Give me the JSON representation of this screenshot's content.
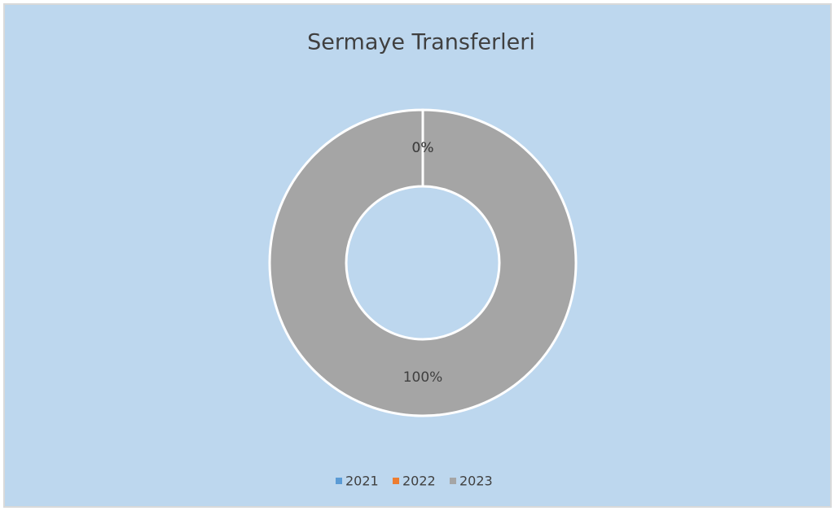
{
  "chart_data": {
    "type": "donut",
    "title": "Sermaye Transferleri",
    "categories": [
      "2021",
      "2022",
      "2023"
    ],
    "values": [
      0,
      0,
      100
    ],
    "value_labels": [
      "0%",
      "0%",
      "100%"
    ],
    "colors": [
      "#5b9bd5",
      "#ed7d31",
      "#a5a5a5"
    ],
    "legend": "bottom"
  }
}
